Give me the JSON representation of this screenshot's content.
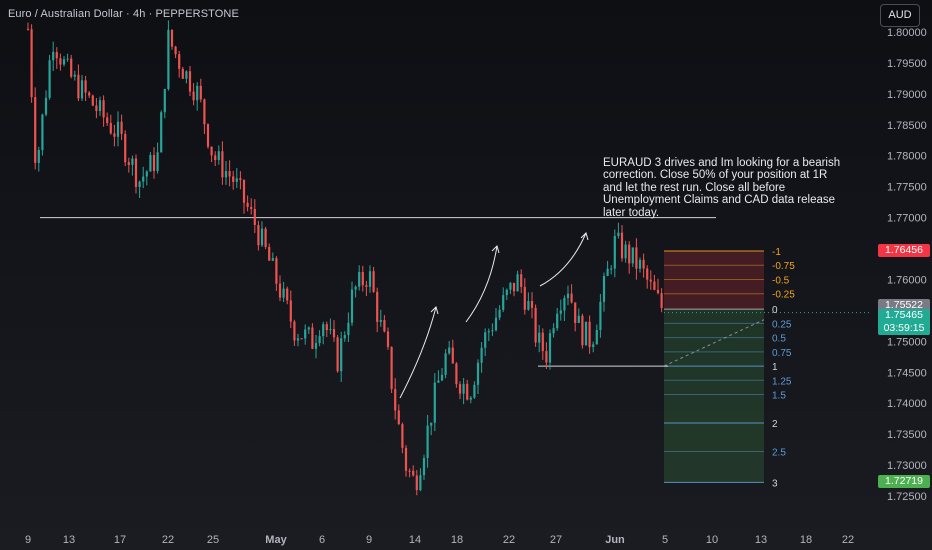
{
  "header": {
    "title": "Euro / Australian Dollar · 4h · PEPPERSTONE",
    "currency_button": "AUD"
  },
  "annotation": {
    "lines": [
      "EURAUD 3 drives and Im looking for a bearish",
      "correction. Close 50% of your position at 1R",
      "and let the rest run. Close all before",
      "Unemployment Claims and CAD data release",
      "later today."
    ]
  },
  "price_labels": {
    "stop": "1.76456",
    "entry": "1.75522",
    "current": "1.75465",
    "countdown": "03:59:15",
    "target": "1.72719"
  },
  "colors": {
    "up": "#26a69a",
    "down": "#ef5350",
    "stop_tag": "#f23645",
    "current_tag": "#22ab94",
    "entry_tag": "#787b86",
    "target_tag": "#4caf50",
    "fib_negative": "#f7a21b",
    "fib_positive": "#5b9bd5"
  },
  "chart_data": {
    "type": "candlestick",
    "symbol": "EURAUD",
    "timeframe": "4h",
    "ylim": [
      1.7225,
      1.803
    ],
    "yticks": [
      "1.80000",
      "1.79500",
      "1.79000",
      "1.78500",
      "1.78000",
      "1.77500",
      "1.77000",
      "1.76500",
      "1.76000",
      "1.75500",
      "1.75000",
      "1.74500",
      "1.74000",
      "1.73500",
      "1.73000",
      "1.72500"
    ],
    "xticks": [
      "9",
      "13",
      "17",
      "22",
      "25",
      "May",
      "6",
      "9",
      "14",
      "18",
      "22",
      "27",
      "Jun",
      "5",
      "10",
      "13",
      "18",
      "22"
    ],
    "approx_price_path": [
      {
        "date": "Apr 8",
        "price": 1.8005
      },
      {
        "date": "Apr 9",
        "price": 1.778
      },
      {
        "date": "Apr 11",
        "price": 1.799
      },
      {
        "date": "Apr 13",
        "price": 1.793
      },
      {
        "date": "Apr 15",
        "price": 1.788
      },
      {
        "date": "Apr 17",
        "price": 1.783
      },
      {
        "date": "Apr 19",
        "price": 1.776
      },
      {
        "date": "Apr 21",
        "price": 1.78
      },
      {
        "date": "Apr 22",
        "price": 1.799
      },
      {
        "date": "Apr 23",
        "price": 1.794
      },
      {
        "date": "Apr 24",
        "price": 1.79
      },
      {
        "date": "Apr 25",
        "price": 1.78
      },
      {
        "date": "Apr 27",
        "price": 1.776
      },
      {
        "date": "Apr 29",
        "price": 1.769
      },
      {
        "date": "May 1",
        "price": 1.76
      },
      {
        "date": "May 3",
        "price": 1.752
      },
      {
        "date": "May 5",
        "price": 1.75
      },
      {
        "date": "May 6",
        "price": 1.754
      },
      {
        "date": "May 7",
        "price": 1.747
      },
      {
        "date": "May 8",
        "price": 1.758
      },
      {
        "date": "May 9",
        "price": 1.761
      },
      {
        "date": "May 10",
        "price": 1.754
      },
      {
        "date": "May 11",
        "price": 1.748
      },
      {
        "date": "May 12",
        "price": 1.738
      },
      {
        "date": "May 13",
        "price": 1.73
      },
      {
        "date": "May 14",
        "price": 1.727
      },
      {
        "date": "May 15",
        "price": 1.734
      },
      {
        "date": "May 16",
        "price": 1.742
      },
      {
        "date": "May 17",
        "price": 1.748
      },
      {
        "date": "May 18",
        "price": 1.744
      },
      {
        "date": "May 19",
        "price": 1.742
      },
      {
        "date": "May 20",
        "price": 1.75
      },
      {
        "date": "May 21",
        "price": 1.754
      },
      {
        "date": "May 22",
        "price": 1.758
      },
      {
        "date": "May 23",
        "price": 1.76
      },
      {
        "date": "May 24",
        "price": 1.756
      },
      {
        "date": "May 25",
        "price": 1.75
      },
      {
        "date": "May 26",
        "price": 1.748
      },
      {
        "date": "May 27",
        "price": 1.756
      },
      {
        "date": "May 28",
        "price": 1.759
      },
      {
        "date": "May 29",
        "price": 1.752
      },
      {
        "date": "May 30",
        "price": 1.75
      },
      {
        "date": "May 31",
        "price": 1.758
      },
      {
        "date": "Jun 1",
        "price": 1.766
      },
      {
        "date": "Jun 2",
        "price": 1.764
      },
      {
        "date": "Jun 3",
        "price": 1.762
      },
      {
        "date": "Jun 4",
        "price": 1.758
      },
      {
        "date": "Jun 5",
        "price": 1.7546
      }
    ],
    "horizontal_levels": [
      {
        "price": 1.77
      },
      {
        "price": 1.746
      }
    ],
    "position_tool": {
      "entry": 1.75522,
      "stop": 1.76456,
      "target": 1.72719,
      "fib_levels": [
        {
          "label": "-1",
          "price": 1.7646
        },
        {
          "label": "-0.75",
          "price": 1.7623
        },
        {
          "label": "-0.5",
          "price": 1.76
        },
        {
          "label": "-0.25",
          "price": 1.7577
        },
        {
          "label": "0",
          "price": 1.7552
        },
        {
          "label": "0.25",
          "price": 1.7529
        },
        {
          "label": "0.5",
          "price": 1.7506
        },
        {
          "label": "0.75",
          "price": 1.7483
        },
        {
          "label": "1",
          "price": 1.746
        },
        {
          "label": "1.25",
          "price": 1.7437
        },
        {
          "label": "1.5",
          "price": 1.7414
        },
        {
          "label": "2",
          "price": 1.7368
        },
        {
          "label": "2.5",
          "price": 1.7322
        },
        {
          "label": "3",
          "price": 1.7272
        }
      ]
    }
  }
}
